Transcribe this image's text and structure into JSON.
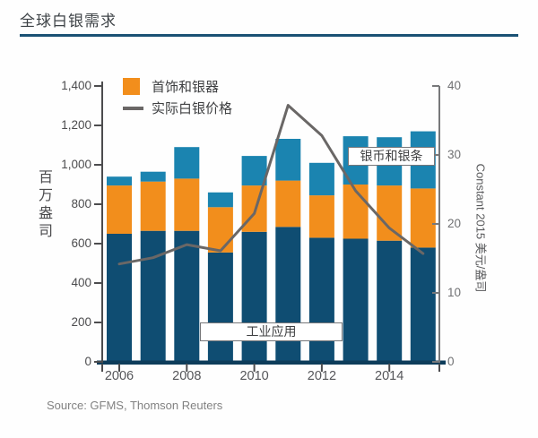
{
  "header": {
    "title": "全球白银需求",
    "rule_color": "#1a5174"
  },
  "footer": {
    "source": "Source: GFMS, Thomson Reuters"
  },
  "chart_data": {
    "type": "bar",
    "subtype": "stacked-bars-with-overlay-line",
    "title": "全球白银需求",
    "categories": [
      "2006",
      "2007",
      "2008",
      "2009",
      "2010",
      "2011",
      "2012",
      "2013",
      "2014",
      "2015"
    ],
    "series": [
      {
        "name": "工业应用",
        "type": "bar",
        "color": "#0f4d72",
        "axis": "left",
        "values": [
          650,
          665,
          665,
          555,
          660,
          685,
          630,
          625,
          615,
          580
        ]
      },
      {
        "name": "首饰和银器",
        "type": "bar",
        "color": "#f28e1c",
        "axis": "left",
        "values": [
          245,
          250,
          265,
          230,
          235,
          235,
          215,
          275,
          280,
          300
        ]
      },
      {
        "name": "银币和银条",
        "type": "bar",
        "color": "#1b84b0",
        "axis": "left",
        "values": [
          45,
          50,
          160,
          75,
          150,
          212,
          165,
          245,
          245,
          290
        ]
      },
      {
        "name": "实际白银价格",
        "type": "line",
        "color": "#6a6766",
        "axis": "right",
        "values": [
          14.2,
          15.1,
          17.0,
          16.1,
          21.5,
          37.2,
          32.8,
          24.8,
          19.4,
          15.7
        ]
      }
    ],
    "left_axis": {
      "label": "百万盎司",
      "min": 0,
      "max": 1400,
      "step": 200,
      "tick_labels": [
        "0",
        "200",
        "400",
        "600",
        "800",
        "1,000",
        "1,200",
        "1,400"
      ]
    },
    "right_axis": {
      "label": "Constant 2015 美元/盎司",
      "min": 0,
      "max": 40,
      "step": 10,
      "tick_labels": [
        "0",
        "10",
        "20",
        "30",
        "40"
      ]
    },
    "x_axis": {
      "tick_labels": [
        "2006",
        "2008",
        "2010",
        "2012",
        "2014"
      ],
      "labeled_every": 2
    },
    "legend": [
      {
        "label": "首饰和银器",
        "swatch": "square",
        "color": "#f28e1c"
      },
      {
        "label": "实际白银价格",
        "swatch": "line",
        "color": "#6a6766"
      }
    ],
    "annotations": [
      {
        "text": "工业应用"
      },
      {
        "text": "银币和银条"
      }
    ],
    "grid": "off",
    "legend_position": "top-left-inside"
  }
}
